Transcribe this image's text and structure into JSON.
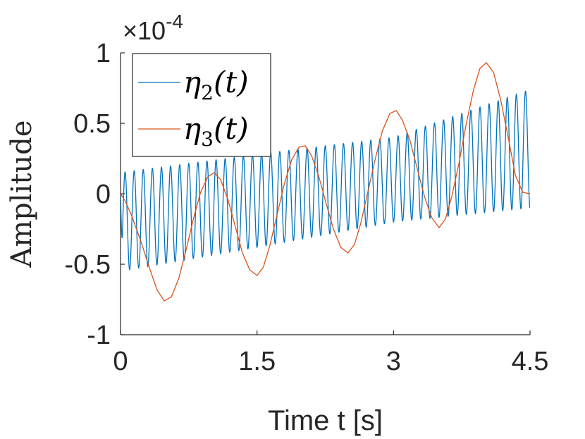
{
  "chart_data": {
    "type": "line",
    "title": "",
    "xlabel": "Time t [s]",
    "ylabel": "Amplitude",
    "xlim": [
      0,
      4.5
    ],
    "ylim": [
      -1,
      1
    ],
    "y_exponent_label": "×10",
    "y_exponent_power": "-4",
    "x_ticks": [
      0,
      1.5,
      3,
      4.5
    ],
    "x_tick_labels": [
      "0",
      "1.5",
      "3",
      "4.5"
    ],
    "y_ticks": [
      -1,
      -0.5,
      0,
      0.5,
      1
    ],
    "y_tick_labels": [
      "-1",
      "-0.5",
      "0",
      "0.5",
      "1"
    ],
    "grid": false,
    "legend_position": "top-left",
    "series": [
      {
        "name": "η₂(t)",
        "legend_main": "η",
        "legend_sub": "2",
        "legend_tail": "(t)",
        "color": "#0072BD",
        "frequency_hz": 10,
        "envelope_center": [
          [
            0,
            -0.2
          ],
          [
            1.5,
            -0.05
          ],
          [
            3,
            0.1
          ],
          [
            4.5,
            0.32
          ]
        ],
        "envelope_amplitude": [
          [
            0,
            0.35
          ],
          [
            1.5,
            0.33
          ],
          [
            3,
            0.3
          ],
          [
            4.5,
            0.42
          ]
        ],
        "start_value": 0
      },
      {
        "name": "η₃(t)",
        "legend_main": "η",
        "legend_sub": "3",
        "legend_tail": "(t)",
        "color": "#D95319",
        "points": [
          [
            0,
            0
          ],
          [
            0.05,
            -0.05
          ],
          [
            0.12,
            -0.15
          ],
          [
            0.22,
            -0.33
          ],
          [
            0.32,
            -0.53
          ],
          [
            0.4,
            -0.68
          ],
          [
            0.48,
            -0.76
          ],
          [
            0.56,
            -0.73
          ],
          [
            0.64,
            -0.6
          ],
          [
            0.72,
            -0.4
          ],
          [
            0.8,
            -0.18
          ],
          [
            0.88,
            0.01
          ],
          [
            0.96,
            0.12
          ],
          [
            1.03,
            0.15
          ],
          [
            1.1,
            0.1
          ],
          [
            1.18,
            -0.04
          ],
          [
            1.26,
            -0.23
          ],
          [
            1.34,
            -0.42
          ],
          [
            1.42,
            -0.54
          ],
          [
            1.5,
            -0.58
          ],
          [
            1.57,
            -0.52
          ],
          [
            1.64,
            -0.37
          ],
          [
            1.72,
            -0.15
          ],
          [
            1.8,
            0.07
          ],
          [
            1.88,
            0.24
          ],
          [
            1.96,
            0.33
          ],
          [
            2.03,
            0.34
          ],
          [
            2.1,
            0.27
          ],
          [
            2.18,
            0.12
          ],
          [
            2.26,
            -0.07
          ],
          [
            2.34,
            -0.25
          ],
          [
            2.42,
            -0.38
          ],
          [
            2.5,
            -0.42
          ],
          [
            2.57,
            -0.36
          ],
          [
            2.64,
            -0.21
          ],
          [
            2.72,
            0.02
          ],
          [
            2.8,
            0.25
          ],
          [
            2.88,
            0.45
          ],
          [
            2.96,
            0.57
          ],
          [
            3.03,
            0.59
          ],
          [
            3.1,
            0.52
          ],
          [
            3.18,
            0.38
          ],
          [
            3.26,
            0.18
          ],
          [
            3.34,
            -0.02
          ],
          [
            3.42,
            -0.17
          ],
          [
            3.5,
            -0.24
          ],
          [
            3.57,
            -0.18
          ],
          [
            3.64,
            -0.02
          ],
          [
            3.72,
            0.22
          ],
          [
            3.8,
            0.5
          ],
          [
            3.88,
            0.74
          ],
          [
            3.95,
            0.89
          ],
          [
            4.02,
            0.93
          ],
          [
            4.1,
            0.86
          ],
          [
            4.18,
            0.66
          ],
          [
            4.26,
            0.4
          ],
          [
            4.34,
            0.13
          ],
          [
            4.42,
            0.01
          ],
          [
            4.5,
            0.0
          ]
        ]
      }
    ]
  }
}
